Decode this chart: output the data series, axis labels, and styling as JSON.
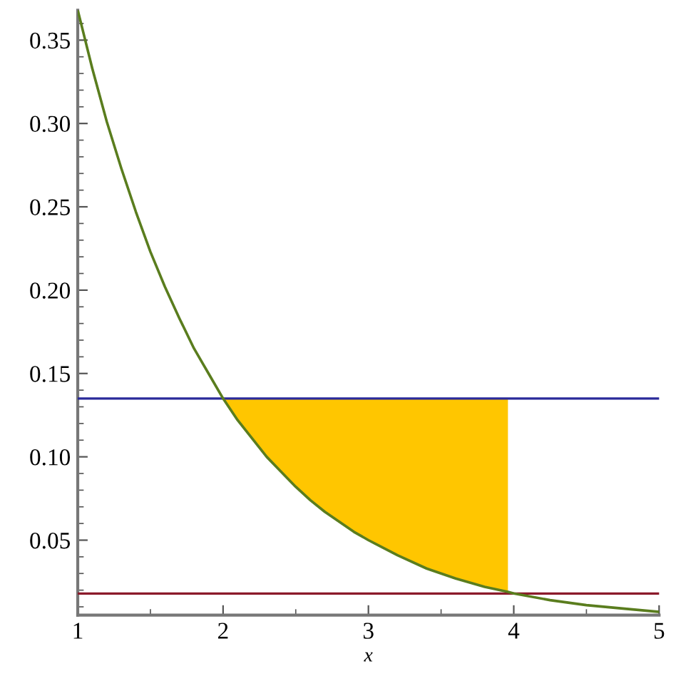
{
  "chart_data": {
    "type": "line",
    "xlabel": "x",
    "xlim": [
      1,
      5
    ],
    "ylim": [
      0.005,
      0.368
    ],
    "xticks": [
      1,
      2,
      3,
      4,
      5
    ],
    "yticks": [
      {
        "value": 0.05,
        "label": "0.05"
      },
      {
        "value": 0.1,
        "label": "0.10"
      },
      {
        "value": 0.15,
        "label": "0.15"
      },
      {
        "value": 0.2,
        "label": "0.20"
      },
      {
        "value": 0.25,
        "label": "0.25"
      },
      {
        "value": 0.3,
        "label": "0.30"
      },
      {
        "value": 0.35,
        "label": "0.35"
      }
    ],
    "grid": false,
    "legend": false,
    "marker": "none",
    "line_style": "solid",
    "series": [
      {
        "color": "#5a7d1e",
        "x": [
          1,
          1.1,
          1.2,
          1.3,
          1.4,
          1.5,
          1.6,
          1.7,
          1.8,
          1.9,
          2,
          2.1,
          2.2,
          2.3,
          2.4,
          2.5,
          2.6,
          2.7,
          2.8,
          2.9,
          3,
          3.2,
          3.4,
          3.6,
          3.8,
          3.96,
          4,
          4.25,
          4.5,
          4.75,
          5
        ],
        "values": [
          0.368,
          0.333,
          0.301,
          0.273,
          0.247,
          0.223,
          0.202,
          0.183,
          0.165,
          0.15,
          0.135,
          0.122,
          0.111,
          0.1,
          0.091,
          0.082,
          0.074,
          0.067,
          0.061,
          0.055,
          0.05,
          0.041,
          0.033,
          0.027,
          0.022,
          0.019,
          0.018,
          0.014,
          0.011,
          0.009,
          0.007
        ],
        "lower": [
          null,
          null,
          null,
          null,
          null,
          null,
          null,
          null,
          null,
          null,
          0.135,
          0.122,
          0.111,
          0.1,
          0.091,
          0.082,
          0.074,
          0.067,
          0.061,
          0.055,
          0.05,
          0.041,
          0.033,
          0.027,
          0.022,
          0.019,
          null,
          null,
          null,
          null,
          null
        ],
        "upper": [
          null,
          null,
          null,
          null,
          null,
          null,
          null,
          null,
          null,
          null,
          0.135,
          0.135,
          0.135,
          0.135,
          0.135,
          0.135,
          0.135,
          0.135,
          0.135,
          0.135,
          0.135,
          0.135,
          0.135,
          0.135,
          0.135,
          0.135,
          null,
          null,
          null,
          null,
          null
        ]
      }
    ],
    "ref_lines": [
      {
        "axis": "y",
        "value": 0.135,
        "color": "#2a2a9a"
      },
      {
        "axis": "y",
        "value": 0.018,
        "color": "#8b1a2a"
      }
    ]
  }
}
